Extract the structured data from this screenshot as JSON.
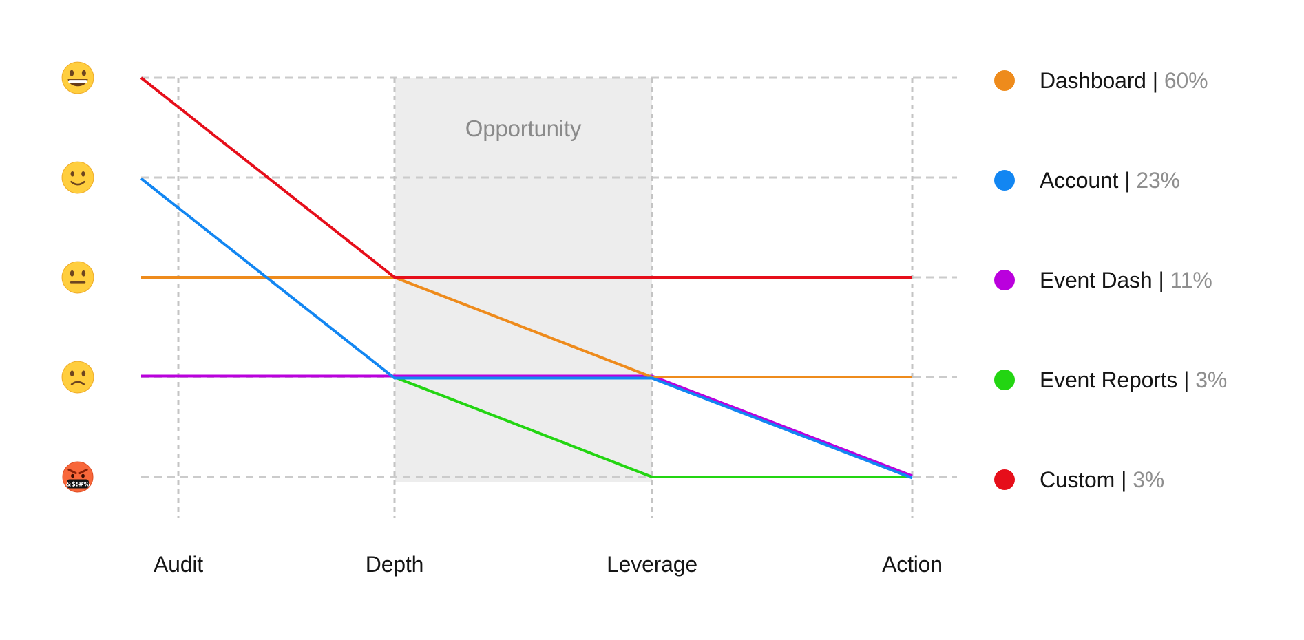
{
  "chart_data": {
    "type": "line",
    "variant": "slope-journey",
    "title": "",
    "x": [
      "Audit",
      "Depth",
      "Leverage",
      "Action"
    ],
    "y_axis_ticks": [
      "😀",
      "🙂",
      "😐",
      "🙁",
      "🤬"
    ],
    "y_axis_note": "emoji sentiment scale, best (top, level 1) to worst (bottom, level 5); series values are 1-based levels from the top",
    "grid": "dashed",
    "legend_position": "right",
    "series": [
      {
        "name": "Dashboard",
        "percent": "60%",
        "color": "#ee8b1c",
        "values": [
          3,
          3,
          4,
          4
        ]
      },
      {
        "name": "Account",
        "percent": "23%",
        "color": "#1286f2",
        "values": [
          2,
          4,
          4,
          5
        ]
      },
      {
        "name": "Event Dash",
        "percent": "11%",
        "color": "#ba00dd",
        "values": [
          4,
          4,
          4,
          5
        ]
      },
      {
        "name": "Event Reports",
        "percent": "3%",
        "color": "#23d512",
        "values": [
          null,
          4,
          5,
          5
        ]
      },
      {
        "name": "Custom",
        "percent": "3%",
        "color": "#e60e1a",
        "values": [
          1,
          3,
          3,
          3
        ]
      }
    ],
    "regions": [
      {
        "label": "Opportunity",
        "from": "Depth",
        "to": "Leverage",
        "fill": "#ededed"
      }
    ]
  },
  "legend": {
    "separator": "|"
  },
  "emoji_faces": [
    {
      "name": "grinning-face",
      "char": "😀"
    },
    {
      "name": "slightly-smiling-face",
      "char": "🙂"
    },
    {
      "name": "neutral-face",
      "char": "😐"
    },
    {
      "name": "slightly-frowning-face",
      "char": "🙁"
    },
    {
      "name": "cursing-face",
      "char": "🤬"
    }
  ]
}
